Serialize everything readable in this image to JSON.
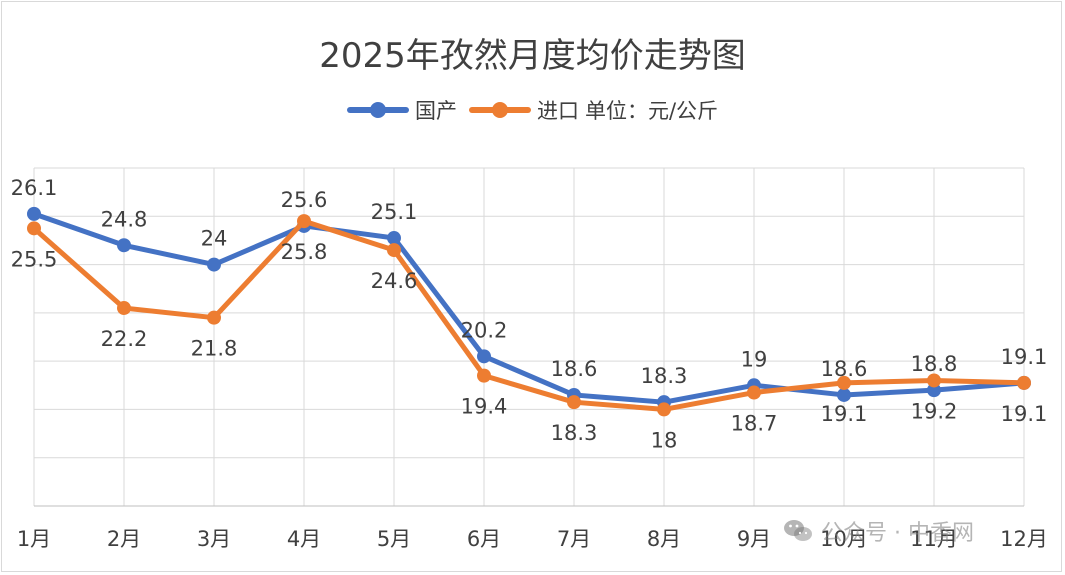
{
  "colors": {
    "domestic": "#4472C4",
    "imported": "#ED7D31",
    "grid": "#d9d9d9",
    "text": "#404040"
  },
  "watermark": {
    "text": "公众号 · 中香网",
    "icon": "wechat-icon"
  },
  "chart_data": {
    "type": "line",
    "title": "2025年孜然月度均价走势图",
    "unit_note": "单位：元/公斤",
    "categories": [
      "1月",
      "2月",
      "3月",
      "4月",
      "5月",
      "6月",
      "7月",
      "8月",
      "9月",
      "10月",
      "11月",
      "12月"
    ],
    "series": [
      {
        "name": "国产",
        "color": "#4472C4",
        "values": [
          26.1,
          24.8,
          24,
          25.6,
          25.1,
          20.2,
          18.6,
          18.3,
          19,
          18.6,
          18.8,
          19.1
        ],
        "label_position": "above"
      },
      {
        "name": "进口",
        "color": "#ED7D31",
        "values": [
          25.5,
          22.2,
          21.8,
          25.8,
          24.6,
          19.4,
          18.3,
          18,
          18.7,
          19.1,
          19.2,
          19.1
        ],
        "label_position": "below"
      }
    ],
    "ylim": [
      14,
      28
    ],
    "grid": true,
    "y_tick_labels_shown": false,
    "legend_position": "top"
  }
}
